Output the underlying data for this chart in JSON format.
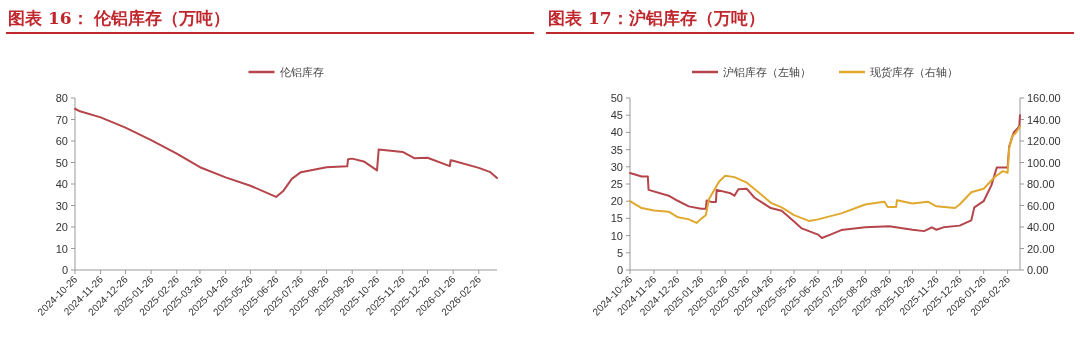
{
  "chart_data": [
    {
      "type": "line",
      "title": "图表 16：  伦铝库存（万吨）",
      "legend": "top",
      "xlim": [
        "2024-10-26",
        "2026-03-20"
      ],
      "xticks": [
        "2024-10-26",
        "2024-11-26",
        "2024-12-26",
        "2025-01-26",
        "2025-02-26",
        "2025-03-26",
        "2025-04-26",
        "2025-05-26",
        "2025-06-26",
        "2025-07-26",
        "2025-08-26",
        "2025-09-26",
        "2025-10-26",
        "2025-11-26",
        "2025-12-26",
        "2026-01-26",
        "2026-02-26"
      ],
      "ylim": [
        0,
        80
      ],
      "yticks": [
        0,
        10,
        20,
        30,
        40,
        50,
        60,
        70,
        80
      ],
      "series": [
        {
          "name": "伦铝库存",
          "color": "#b5454b",
          "x": [
            "2024-10-26",
            "2024-11-01",
            "2024-11-26",
            "2024-12-26",
            "2025-01-26",
            "2025-02-26",
            "2025-03-26",
            "2025-04-26",
            "2025-05-26",
            "2025-06-26",
            "2025-07-05",
            "2025-07-15",
            "2025-07-26",
            "2025-08-26",
            "2025-09-20",
            "2025-09-21",
            "2025-09-26",
            "2025-10-10",
            "2025-10-26",
            "2025-10-28",
            "2025-11-26",
            "2025-12-10",
            "2025-12-26",
            "2026-01-22",
            "2026-01-23",
            "2026-01-26",
            "2026-02-26",
            "2026-03-12",
            "2026-03-20"
          ],
          "values": [
            75.0,
            73.8,
            71.0,
            66.2,
            60.4,
            54.1,
            47.8,
            43.1,
            39.2,
            34.0,
            36.9,
            42.4,
            45.5,
            47.8,
            48.2,
            51.5,
            51.8,
            50.5,
            46.3,
            56.0,
            54.9,
            52.0,
            52.2,
            48.3,
            51.0,
            50.8,
            47.5,
            45.5,
            42.8
          ]
        }
      ]
    },
    {
      "type": "line",
      "title": "图表 17：沪铝库存（万吨）",
      "legend": "top",
      "xlim": [
        "2024-10-26",
        "2026-03-14"
      ],
      "xticks": [
        "2024-10-26",
        "2024-11-26",
        "2024-12-26",
        "2025-01-26",
        "2025-02-26",
        "2025-03-26",
        "2025-04-26",
        "2025-05-26",
        "2025-06-26",
        "2025-07-26",
        "2025-08-26",
        "2025-09-26",
        "2025-10-26",
        "2025-11-26",
        "2025-12-26",
        "2026-01-26",
        "2026-02-26"
      ],
      "ylim": [
        0,
        50
      ],
      "yticks": [
        0,
        5,
        10,
        15,
        20,
        25,
        30,
        35,
        40,
        45,
        50
      ],
      "y2lim": [
        0,
        160
      ],
      "y2ticks": [
        {
          "value": 0,
          "label": "0.00"
        },
        {
          "value": 20,
          "label": "20.00"
        },
        {
          "value": 40,
          "label": "40.00"
        },
        {
          "value": 60,
          "label": "60.00"
        },
        {
          "value": 80,
          "label": "80.00"
        },
        {
          "value": 100,
          "label": "100.00"
        },
        {
          "value": 120,
          "label": "120.00"
        },
        {
          "value": 140,
          "label": "140.00"
        },
        {
          "value": 160,
          "label": "160.00"
        }
      ],
      "series": [
        {
          "name": "沪铝库存（左轴）",
          "color": "#b5454b",
          "x": [
            "2024-10-26",
            "2024-11-10",
            "2024-11-18",
            "2024-11-19",
            "2024-12-15",
            "2024-12-26",
            "2025-01-10",
            "2025-01-26",
            "2025-02-01",
            "2025-02-02",
            "2025-02-08",
            "2025-02-14",
            "2025-02-15",
            "2025-03-05",
            "2025-03-10",
            "2025-03-15",
            "2025-03-26",
            "2025-04-05",
            "2025-04-26",
            "2025-05-10",
            "2025-05-26",
            "2025-06-05",
            "2025-06-26",
            "2025-07-01",
            "2025-07-12",
            "2025-07-26",
            "2025-08-26",
            "2025-09-26",
            "2025-10-26",
            "2025-11-10",
            "2025-11-20",
            "2025-11-26",
            "2025-12-05",
            "2025-12-26",
            "2026-01-10",
            "2026-01-14",
            "2026-01-26",
            "2026-02-05",
            "2026-02-12",
            "2026-02-26",
            "2026-02-28",
            "2026-03-06",
            "2026-03-13",
            "2026-03-14"
          ],
          "values": [
            28.2,
            27.2,
            27.2,
            23.3,
            21.6,
            20.2,
            18.5,
            17.8,
            17.8,
            20.2,
            19.8,
            19.8,
            23.3,
            22.3,
            21.6,
            23.5,
            23.6,
            21.0,
            18.0,
            17.2,
            14.1,
            12.1,
            10.3,
            9.3,
            10.3,
            11.6,
            12.4,
            12.7,
            11.7,
            11.3,
            12.4,
            11.7,
            12.4,
            12.9,
            14.4,
            18.2,
            20.0,
            24.6,
            29.8,
            29.8,
            35.9,
            40.0,
            41.7,
            45.0
          ]
        },
        {
          "name": "现货库存（右轴）",
          "color": "#e0a82e",
          "axis": "y2",
          "x": [
            "2024-10-26",
            "2024-11-10",
            "2024-11-26",
            "2024-12-15",
            "2024-12-26",
            "2025-01-10",
            "2025-01-20",
            "2025-01-26",
            "2025-02-01",
            "2025-02-05",
            "2025-02-18",
            "2025-02-26",
            "2025-03-10",
            "2025-03-26",
            "2025-04-10",
            "2025-04-26",
            "2025-05-10",
            "2025-05-26",
            "2025-06-15",
            "2025-06-26",
            "2025-07-26",
            "2025-08-26",
            "2025-09-10",
            "2025-09-20",
            "2025-09-24",
            "2025-10-05",
            "2025-10-06",
            "2025-10-26",
            "2025-11-15",
            "2025-11-26",
            "2025-12-20",
            "2025-12-26",
            "2026-01-10",
            "2026-01-26",
            "2026-02-10",
            "2026-02-20",
            "2026-02-26",
            "2026-02-28",
            "2026-03-04",
            "2026-03-08",
            "2026-03-14"
          ],
          "values": [
            64.1,
            57.6,
            55.3,
            54.3,
            49.4,
            47.1,
            43.8,
            47.8,
            51.0,
            65.8,
            82.1,
            87.7,
            86.4,
            81.2,
            72.3,
            62.5,
            58.2,
            51.0,
            45.5,
            47.1,
            52.7,
            60.9,
            62.5,
            63.5,
            58.6,
            58.6,
            64.8,
            61.8,
            63.5,
            59.2,
            57.6,
            60.9,
            72.3,
            75.6,
            87.0,
            92.0,
            90.3,
            113.2,
            124.7,
            127.0,
            133.5
          ]
        }
      ]
    }
  ]
}
